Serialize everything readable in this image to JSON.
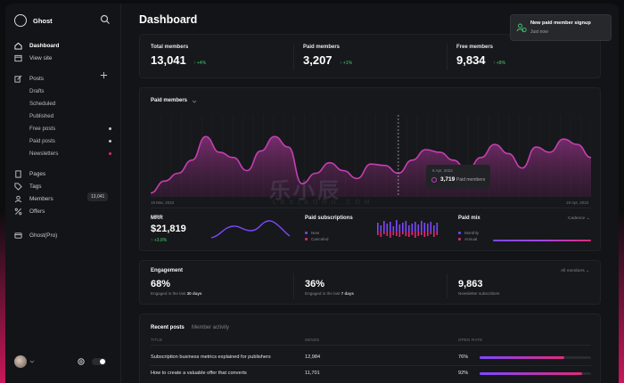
{
  "app": {
    "name": "Ghost",
    "page_title": "Dashboard"
  },
  "sidebar": {
    "primary": [
      {
        "label": "Dashboard",
        "icon": "home-icon"
      },
      {
        "label": "View site",
        "icon": "window-icon"
      }
    ],
    "posts": {
      "label": "Posts",
      "items": [
        {
          "label": "Drafts"
        },
        {
          "label": "Scheduled"
        },
        {
          "label": "Published"
        },
        {
          "label": "Free posts",
          "dot_color": "#c7c7c7"
        },
        {
          "label": "Paid posts",
          "dot_color": "#c7c7c7"
        },
        {
          "label": "Newsletters",
          "dot_color": "#e22a6a"
        }
      ]
    },
    "secondary": [
      {
        "label": "Pages",
        "icon": "page-icon"
      },
      {
        "label": "Tags",
        "icon": "tag-icon"
      },
      {
        "label": "Members",
        "icon": "members-icon",
        "badge": "13,041"
      },
      {
        "label": "Offers",
        "icon": "percent-icon"
      }
    ],
    "ghost_pro": {
      "label": "Ghost(Pro)"
    }
  },
  "stats": [
    {
      "label": "Total members",
      "value": "13,041",
      "delta": "+4%"
    },
    {
      "label": "Paid members",
      "value": "3,207",
      "delta": "+1%"
    },
    {
      "label": "Free members",
      "value": "9,834",
      "delta": "+8%"
    }
  ],
  "paid_chart": {
    "label": "Paid members",
    "start_date": "19 Mar, 2022",
    "end_date": "19 Apr, 2022",
    "tooltip": {
      "date": "6 Apr, 2022",
      "value": "3,719",
      "label": "Paid members"
    },
    "accent": "#c53fb0"
  },
  "chart_data": {
    "type": "area",
    "series": [
      {
        "values": [
          3,
          12,
          18,
          28,
          46,
          34,
          30,
          20,
          35,
          46,
          38,
          10,
          18,
          26,
          20,
          14,
          25,
          24,
          18,
          28,
          36,
          34,
          28,
          20,
          30,
          40,
          33,
          22,
          38,
          34,
          44,
          40,
          30
        ]
      }
    ],
    "ylim": [
      0,
      100
    ]
  },
  "mrr": {
    "label": "MRR",
    "value": "$21,819",
    "delta": "+3.8%"
  },
  "paid_subscriptions": {
    "label": "Paid subscriptions",
    "legend": [
      {
        "label": "New",
        "color": "#7c48ff"
      },
      {
        "label": "Canceled",
        "color": "#e02a7a"
      }
    ]
  },
  "paid_mix": {
    "label": "Paid mix",
    "dropdown": "Cadence",
    "legend": [
      {
        "label": "Monthly",
        "color": "#7c48ff"
      },
      {
        "label": "Annual",
        "color": "#e02a7a"
      }
    ]
  },
  "engagement": {
    "label": "Engagement",
    "dropdown": "All members",
    "items": [
      {
        "value": "68%",
        "desc_prefix": "Engaged in the last",
        "desc_bold": "30 days"
      },
      {
        "value": "36%",
        "desc_prefix": "Engaged in the last",
        "desc_bold": "7 days"
      },
      {
        "value": "9,863",
        "desc_prefix": "Newsletter subscribers",
        "desc_bold": ""
      }
    ]
  },
  "recent": {
    "tabs": [
      "Recent posts",
      "Member activity"
    ],
    "headers": [
      "TITLE",
      "SENDS",
      "OPEN RATE"
    ],
    "rows": [
      {
        "title": "Subscription business metrics explained for publishers",
        "sends": "12,984",
        "open_rate": "76%",
        "open_fraction": 0.76
      },
      {
        "title": "How to create a valuable offer that converts",
        "sends": "11,701",
        "open_rate": "92%",
        "open_fraction": 0.92
      }
    ]
  },
  "toast": {
    "title": "New paid member signup",
    "subtitle": "Just now"
  },
  "watermark": {
    "main": "乐小辰",
    "sub": "LEXIAOHU.COM"
  }
}
